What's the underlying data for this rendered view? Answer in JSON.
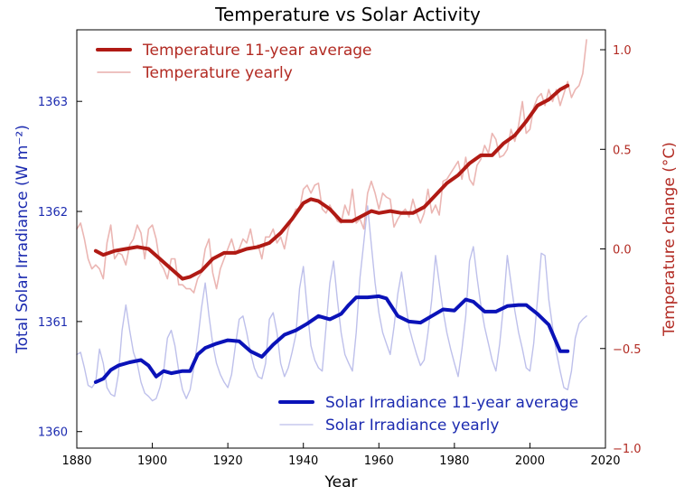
{
  "chart_data": {
    "type": "line",
    "title": "Temperature vs Solar Activity",
    "xlabel": "Year",
    "ylabel_left": "Total Solar Irradiance (W m⁻²)",
    "ylabel_right": "Temperature change (°C)",
    "xlim": [
      1880,
      2020
    ],
    "ylim_left": [
      1359.85,
      1363.65
    ],
    "ylim_right": [
      -1.0,
      1.1
    ],
    "x_ticks": [
      "1880",
      "1900",
      "1920",
      "1940",
      "1960",
      "1980",
      "2000",
      "2020"
    ],
    "y_ticks_left": [
      "1360",
      "1361",
      "1362",
      "1363"
    ],
    "y_ticks_right": [
      "−1.0",
      "−0.5",
      "0.0",
      "0.5",
      "1.0"
    ],
    "colors": {
      "temp_avg": "#b01a14",
      "temp_yearly": "#e9aeab",
      "solar_avg": "#0a12b8",
      "solar_yearly": "#a8abe4",
      "left_axis_text": "#1c2bb0",
      "right_axis_text": "#b22a22"
    },
    "legend_top": [
      {
        "label": "Temperature 11-year average",
        "color": "#b01a14",
        "width": 4
      },
      {
        "label": "Temperature yearly",
        "color": "#e9aeab",
        "width": 1.5
      }
    ],
    "legend_bottom": [
      {
        "label": "Solar Irradiance 11-year average",
        "color": "#0a12b8",
        "width": 4
      },
      {
        "label": "Solar Irradiance yearly",
        "color": "#c7c9ee",
        "width": 1.5
      }
    ],
    "series": [
      {
        "name": "Temperature 11-year average",
        "axis": "right",
        "x": [
          1885,
          1887,
          1890,
          1893,
          1896,
          1899,
          1902,
          1905,
          1908,
          1910,
          1913,
          1916,
          1919,
          1922,
          1925,
          1928,
          1931,
          1934,
          1937,
          1940,
          1942,
          1944,
          1947,
          1950,
          1953,
          1956,
          1958,
          1960,
          1963,
          1966,
          1969,
          1972,
          1975,
          1978,
          1981,
          1984,
          1987,
          1990,
          1993,
          1996,
          1999,
          2002,
          2005,
          2008,
          2010
        ],
        "y": [
          -0.01,
          -0.03,
          -0.01,
          0.0,
          0.01,
          0.0,
          -0.05,
          -0.1,
          -0.15,
          -0.14,
          -0.11,
          -0.05,
          -0.02,
          -0.02,
          0.0,
          0.01,
          0.03,
          0.08,
          0.15,
          0.23,
          0.25,
          0.24,
          0.2,
          0.14,
          0.14,
          0.17,
          0.19,
          0.18,
          0.19,
          0.18,
          0.18,
          0.21,
          0.27,
          0.33,
          0.37,
          0.43,
          0.47,
          0.47,
          0.53,
          0.57,
          0.64,
          0.72,
          0.75,
          0.8,
          0.82
        ]
      },
      {
        "name": "Temperature yearly",
        "axis": "right",
        "x": [
          1880,
          1881,
          1882,
          1883,
          1884,
          1885,
          1886,
          1887,
          1888,
          1889,
          1890,
          1891,
          1892,
          1893,
          1894,
          1895,
          1896,
          1897,
          1898,
          1899,
          1900,
          1901,
          1902,
          1903,
          1904,
          1905,
          1906,
          1907,
          1908,
          1909,
          1910,
          1911,
          1912,
          1913,
          1914,
          1915,
          1916,
          1917,
          1918,
          1919,
          1920,
          1921,
          1922,
          1923,
          1924,
          1925,
          1926,
          1927,
          1928,
          1929,
          1930,
          1931,
          1932,
          1933,
          1934,
          1935,
          1936,
          1937,
          1938,
          1939,
          1940,
          1941,
          1942,
          1943,
          1944,
          1945,
          1946,
          1947,
          1948,
          1949,
          1950,
          1951,
          1952,
          1953,
          1954,
          1955,
          1956,
          1957,
          1958,
          1959,
          1960,
          1961,
          1962,
          1963,
          1964,
          1965,
          1966,
          1967,
          1968,
          1969,
          1970,
          1971,
          1972,
          1973,
          1974,
          1975,
          1976,
          1977,
          1978,
          1979,
          1980,
          1981,
          1982,
          1983,
          1984,
          1985,
          1986,
          1987,
          1988,
          1989,
          1990,
          1991,
          1992,
          1993,
          1994,
          1995,
          1996,
          1997,
          1998,
          1999,
          2000,
          2001,
          2002,
          2003,
          2004,
          2005,
          2006,
          2007,
          2008,
          2009,
          2010,
          2011,
          2012,
          2013,
          2014,
          2015
        ],
        "y": [
          0.1,
          0.13,
          0.05,
          -0.05,
          -0.1,
          -0.08,
          -0.1,
          -0.15,
          0.03,
          0.12,
          -0.05,
          -0.02,
          -0.03,
          -0.08,
          0.02,
          0.05,
          0.12,
          0.08,
          -0.05,
          0.1,
          0.12,
          0.05,
          -0.07,
          -0.1,
          -0.15,
          -0.05,
          -0.05,
          -0.18,
          -0.18,
          -0.2,
          -0.2,
          -0.22,
          -0.15,
          -0.12,
          0.0,
          0.05,
          -0.12,
          -0.2,
          -0.1,
          -0.05,
          0.0,
          0.05,
          -0.02,
          0.0,
          0.05,
          0.03,
          0.1,
          0.0,
          0.02,
          -0.05,
          0.06,
          0.06,
          0.1,
          0.03,
          0.06,
          0.0,
          0.1,
          0.15,
          0.2,
          0.2,
          0.3,
          0.32,
          0.28,
          0.32,
          0.33,
          0.2,
          0.18,
          0.22,
          0.18,
          0.14,
          0.13,
          0.22,
          0.17,
          0.3,
          0.13,
          0.15,
          0.1,
          0.28,
          0.34,
          0.28,
          0.2,
          0.28,
          0.26,
          0.25,
          0.11,
          0.15,
          0.18,
          0.2,
          0.16,
          0.25,
          0.18,
          0.13,
          0.18,
          0.3,
          0.18,
          0.22,
          0.17,
          0.34,
          0.35,
          0.38,
          0.41,
          0.44,
          0.35,
          0.46,
          0.35,
          0.32,
          0.42,
          0.45,
          0.52,
          0.48,
          0.58,
          0.55,
          0.46,
          0.47,
          0.5,
          0.6,
          0.54,
          0.62,
          0.74,
          0.58,
          0.6,
          0.71,
          0.76,
          0.78,
          0.72,
          0.8,
          0.74,
          0.8,
          0.72,
          0.78,
          0.84,
          0.76,
          0.8,
          0.82,
          0.88,
          1.05
        ]
      },
      {
        "name": "Solar Irradiance 11-year average",
        "axis": "left",
        "x": [
          1885,
          1887,
          1889,
          1891,
          1894,
          1897,
          1899,
          1901,
          1903,
          1905,
          1908,
          1910,
          1912,
          1914,
          1917,
          1920,
          1923,
          1926,
          1929,
          1932,
          1935,
          1938,
          1941,
          1944,
          1947,
          1950,
          1952,
          1954,
          1957,
          1960,
          1962,
          1965,
          1968,
          1971,
          1974,
          1977,
          1980,
          1983,
          1985,
          1988,
          1991,
          1994,
          1997,
          1999,
          2002,
          2005,
          2008,
          2010
        ],
        "y": [
          1360.45,
          1360.48,
          1360.56,
          1360.6,
          1360.63,
          1360.65,
          1360.6,
          1360.5,
          1360.55,
          1360.53,
          1360.55,
          1360.55,
          1360.7,
          1360.76,
          1360.8,
          1360.83,
          1360.82,
          1360.73,
          1360.68,
          1360.79,
          1360.88,
          1360.92,
          1360.98,
          1361.05,
          1361.02,
          1361.07,
          1361.15,
          1361.22,
          1361.22,
          1361.23,
          1361.21,
          1361.05,
          1361.0,
          1360.99,
          1361.05,
          1361.11,
          1361.1,
          1361.2,
          1361.18,
          1361.09,
          1361.09,
          1361.14,
          1361.15,
          1361.15,
          1361.07,
          1360.97,
          1360.73,
          1360.73
        ]
      },
      {
        "name": "Solar Irradiance yearly",
        "axis": "left",
        "x": [
          1880,
          1881,
          1882,
          1883,
          1884,
          1885,
          1886,
          1887,
          1888,
          1889,
          1890,
          1891,
          1892,
          1893,
          1894,
          1895,
          1896,
          1897,
          1898,
          1899,
          1900,
          1901,
          1902,
          1903,
          1904,
          1905,
          1906,
          1907,
          1908,
          1909,
          1910,
          1911,
          1912,
          1913,
          1914,
          1915,
          1916,
          1917,
          1918,
          1919,
          1920,
          1921,
          1922,
          1923,
          1924,
          1925,
          1926,
          1927,
          1928,
          1929,
          1930,
          1931,
          1932,
          1933,
          1934,
          1935,
          1936,
          1937,
          1938,
          1939,
          1940,
          1941,
          1942,
          1943,
          1944,
          1945,
          1946,
          1947,
          1948,
          1949,
          1950,
          1951,
          1952,
          1953,
          1954,
          1955,
          1956,
          1957,
          1958,
          1959,
          1960,
          1961,
          1962,
          1963,
          1964,
          1965,
          1966,
          1967,
          1968,
          1969,
          1970,
          1971,
          1972,
          1973,
          1974,
          1975,
          1976,
          1977,
          1978,
          1979,
          1980,
          1981,
          1982,
          1983,
          1984,
          1985,
          1986,
          1987,
          1988,
          1989,
          1990,
          1991,
          1992,
          1993,
          1994,
          1995,
          1996,
          1997,
          1998,
          1999,
          2000,
          2001,
          2002,
          2003,
          2004,
          2005,
          2006,
          2007,
          2008,
          2009,
          2010,
          2011,
          2012,
          2013,
          2014,
          2015
        ],
        "y": [
          1360.7,
          1360.72,
          1360.58,
          1360.42,
          1360.4,
          1360.45,
          1360.75,
          1360.62,
          1360.4,
          1360.34,
          1360.32,
          1360.52,
          1360.92,
          1361.15,
          1360.92,
          1360.72,
          1360.62,
          1360.45,
          1360.35,
          1360.32,
          1360.28,
          1360.3,
          1360.4,
          1360.55,
          1360.85,
          1360.92,
          1360.78,
          1360.55,
          1360.38,
          1360.3,
          1360.38,
          1360.58,
          1360.82,
          1361.12,
          1361.35,
          1361.05,
          1360.8,
          1360.62,
          1360.52,
          1360.45,
          1360.4,
          1360.52,
          1360.78,
          1361.02,
          1361.05,
          1360.9,
          1360.72,
          1360.58,
          1360.5,
          1360.48,
          1360.62,
          1361.02,
          1361.08,
          1360.9,
          1360.62,
          1360.5,
          1360.58,
          1360.72,
          1360.88,
          1361.3,
          1361.5,
          1361.12,
          1360.78,
          1360.65,
          1360.58,
          1360.55,
          1360.95,
          1361.35,
          1361.55,
          1361.2,
          1360.9,
          1360.7,
          1360.62,
          1360.55,
          1360.9,
          1361.4,
          1361.72,
          1362.05,
          1361.7,
          1361.35,
          1361.08,
          1360.9,
          1360.8,
          1360.7,
          1360.95,
          1361.25,
          1361.45,
          1361.2,
          1360.95,
          1360.82,
          1360.7,
          1360.6,
          1360.65,
          1360.9,
          1361.2,
          1361.6,
          1361.35,
          1361.1,
          1360.9,
          1360.75,
          1360.62,
          1360.5,
          1360.75,
          1361.05,
          1361.55,
          1361.68,
          1361.4,
          1361.15,
          1360.95,
          1360.8,
          1360.65,
          1360.55,
          1360.8,
          1361.15,
          1361.6,
          1361.35,
          1361.1,
          1360.9,
          1360.75,
          1360.58,
          1360.55,
          1360.8,
          1361.2,
          1361.62,
          1361.6,
          1361.2,
          1360.95,
          1360.72,
          1360.55,
          1360.4,
          1360.38,
          1360.55,
          1360.85,
          1360.98,
          1361.02,
          1361.05
        ]
      }
    ]
  }
}
